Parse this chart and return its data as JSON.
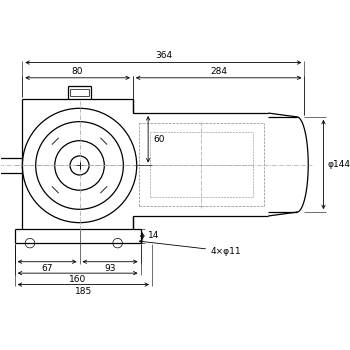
{
  "bg_color": "#ffffff",
  "line_color": "#000000",
  "dim_color": "#000000",
  "dash_color": "#888888",
  "dim_364": "364",
  "dim_80": "80",
  "dim_284": "284",
  "dim_60": "60",
  "dim_14": "14",
  "dim_144": "φ144",
  "dim_67": "67",
  "dim_93": "93",
  "dim_160": "160",
  "dim_185": "185",
  "dim_4x11": "4×φ11"
}
